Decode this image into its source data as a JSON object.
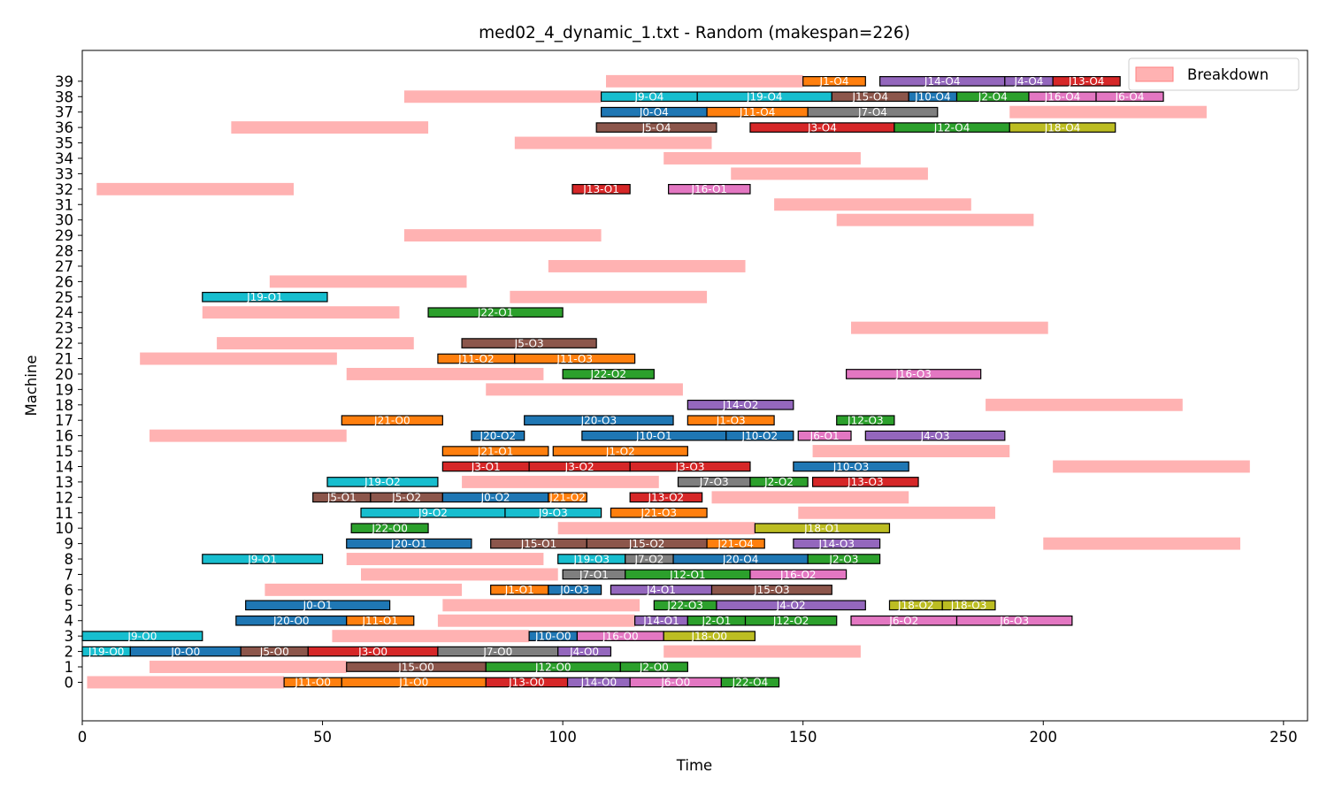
{
  "chart_data": {
    "type": "gantt",
    "title": "med02_4_dynamic_1.txt - Random (makespan=226)",
    "xlabel": "Time",
    "ylabel": "Machine",
    "xlim": [
      0,
      255
    ],
    "ylim": [
      -2.5,
      41
    ],
    "x_ticks": [
      0,
      50,
      100,
      150,
      200,
      250
    ],
    "y_ticks": [
      0,
      1,
      2,
      3,
      4,
      5,
      6,
      7,
      8,
      9,
      10,
      11,
      12,
      13,
      14,
      15,
      16,
      17,
      18,
      19,
      20,
      21,
      22,
      23,
      24,
      25,
      26,
      27,
      28,
      29,
      30,
      31,
      32,
      33,
      34,
      35,
      36,
      37,
      38,
      39
    ],
    "grid": false,
    "legend": {
      "position": "top-right",
      "entries": [
        {
          "label": "Breakdown",
          "color": "#ffb2b2"
        }
      ]
    },
    "job_colors": {
      "J0": "#1f77b4",
      "J1": "#ff7f0e",
      "J2": "#2ca02c",
      "J3": "#d62728",
      "J4": "#9467bd",
      "J5": "#8c564b",
      "J6": "#e377c2",
      "J7": "#7f7f7f",
      "J9": "#17becf",
      "J10": "#1f77b4",
      "J11": "#ff7f0e",
      "J12": "#2ca02c",
      "J13": "#d62728",
      "J14": "#9467bd",
      "J15": "#8c564b",
      "J16": "#e377c2",
      "J18": "#bcbd22",
      "J19": "#17becf",
      "J20": "#1f77b4",
      "J21": "#ff7f0e",
      "J22": "#2ca02c"
    },
    "breakdowns": [
      {
        "machine": 0,
        "start": 1,
        "end": 42
      },
      {
        "machine": 1,
        "start": 14,
        "end": 55
      },
      {
        "machine": 2,
        "start": 121,
        "end": 162
      },
      {
        "machine": 3,
        "start": 52,
        "end": 93
      },
      {
        "machine": 4,
        "start": 74,
        "end": 115
      },
      {
        "machine": 5,
        "start": 75,
        "end": 116
      },
      {
        "machine": 6,
        "start": 38,
        "end": 79
      },
      {
        "machine": 7,
        "start": 58,
        "end": 99
      },
      {
        "machine": 8,
        "start": 55,
        "end": 96
      },
      {
        "machine": 9,
        "start": 200,
        "end": 241
      },
      {
        "machine": 10,
        "start": 99,
        "end": 140
      },
      {
        "machine": 11,
        "start": 149,
        "end": 190
      },
      {
        "machine": 12,
        "start": 131,
        "end": 172
      },
      {
        "machine": 13,
        "start": 79,
        "end": 120
      },
      {
        "machine": 14,
        "start": 202,
        "end": 243
      },
      {
        "machine": 15,
        "start": 152,
        "end": 193
      },
      {
        "machine": 16,
        "start": 14,
        "end": 55
      },
      {
        "machine": 18,
        "start": 188,
        "end": 229
      },
      {
        "machine": 19,
        "start": 84,
        "end": 125
      },
      {
        "machine": 20,
        "start": 55,
        "end": 96
      },
      {
        "machine": 21,
        "start": 12,
        "end": 53
      },
      {
        "machine": 22,
        "start": 28,
        "end": 69
      },
      {
        "machine": 23,
        "start": 160,
        "end": 201
      },
      {
        "machine": 24,
        "start": 25,
        "end": 66
      },
      {
        "machine": 25,
        "start": 89,
        "end": 130
      },
      {
        "machine": 26,
        "start": 39,
        "end": 80
      },
      {
        "machine": 27,
        "start": 97,
        "end": 138
      },
      {
        "machine": 29,
        "start": 67,
        "end": 108
      },
      {
        "machine": 30,
        "start": 157,
        "end": 198
      },
      {
        "machine": 31,
        "start": 144,
        "end": 185
      },
      {
        "machine": 32,
        "start": 3,
        "end": 44
      },
      {
        "machine": 33,
        "start": 135,
        "end": 176
      },
      {
        "machine": 34,
        "start": 121,
        "end": 162
      },
      {
        "machine": 35,
        "start": 90,
        "end": 131
      },
      {
        "machine": 36,
        "start": 31,
        "end": 72
      },
      {
        "machine": 37,
        "start": 193,
        "end": 234
      },
      {
        "machine": 38,
        "start": 67,
        "end": 108
      },
      {
        "machine": 39,
        "start": 109,
        "end": 150
      }
    ],
    "operations": [
      {
        "machine": 0,
        "job": "J11",
        "label": "J11-O0",
        "start": 42,
        "end": 54
      },
      {
        "machine": 0,
        "job": "J1",
        "label": "J1-O0",
        "start": 54,
        "end": 84
      },
      {
        "machine": 0,
        "job": "J13",
        "label": "J13-O0",
        "start": 84,
        "end": 101
      },
      {
        "machine": 0,
        "job": "J14",
        "label": "J14-O0",
        "start": 101,
        "end": 114
      },
      {
        "machine": 0,
        "job": "J6",
        "label": "J6-O0",
        "start": 114,
        "end": 133
      },
      {
        "machine": 0,
        "job": "J22",
        "label": "J22-O4",
        "start": 133,
        "end": 145
      },
      {
        "machine": 1,
        "job": "J15",
        "label": "J15-O0",
        "start": 55,
        "end": 84
      },
      {
        "machine": 1,
        "job": "J12",
        "label": "J12-O0",
        "start": 84,
        "end": 112
      },
      {
        "machine": 1,
        "job": "J2",
        "label": "J2-O0",
        "start": 112,
        "end": 126
      },
      {
        "machine": 2,
        "job": "J19",
        "label": "J19-O0",
        "start": 0,
        "end": 10
      },
      {
        "machine": 2,
        "job": "J0",
        "label": "J0-O0",
        "start": 10,
        "end": 33
      },
      {
        "machine": 2,
        "job": "J5",
        "label": "J5-O0",
        "start": 33,
        "end": 47
      },
      {
        "machine": 2,
        "job": "J3",
        "label": "J3-O0",
        "start": 47,
        "end": 74
      },
      {
        "machine": 2,
        "job": "J7",
        "label": "J7-O0",
        "start": 74,
        "end": 99
      },
      {
        "machine": 2,
        "job": "J4",
        "label": "J4-O0",
        "start": 99,
        "end": 110
      },
      {
        "machine": 3,
        "job": "J9",
        "label": "J9-O0",
        "start": 0,
        "end": 25
      },
      {
        "machine": 3,
        "job": "J10",
        "label": "J10-O0",
        "start": 93,
        "end": 103
      },
      {
        "machine": 3,
        "job": "J16",
        "label": "J16-O0",
        "start": 103,
        "end": 121
      },
      {
        "machine": 3,
        "job": "J18",
        "label": "J18-O0",
        "start": 121,
        "end": 140
      },
      {
        "machine": 4,
        "job": "J20",
        "label": "J20-O0",
        "start": 32,
        "end": 55
      },
      {
        "machine": 4,
        "job": "J11",
        "label": "J11-O1",
        "start": 55,
        "end": 69
      },
      {
        "machine": 4,
        "job": "J14",
        "label": "J14-O1",
        "start": 115,
        "end": 126
      },
      {
        "machine": 4,
        "job": "J2",
        "label": "J2-O1",
        "start": 126,
        "end": 138
      },
      {
        "machine": 4,
        "job": "J12",
        "label": "J12-O2",
        "start": 138,
        "end": 157
      },
      {
        "machine": 4,
        "job": "J6",
        "label": "J6-O2",
        "start": 160,
        "end": 182
      },
      {
        "machine": 4,
        "job": "J6",
        "label": "J6-O3",
        "start": 182,
        "end": 206
      },
      {
        "machine": 5,
        "job": "J0",
        "label": "J0-O1",
        "start": 34,
        "end": 64
      },
      {
        "machine": 5,
        "job": "J22",
        "label": "J22-O3",
        "start": 119,
        "end": 132
      },
      {
        "machine": 5,
        "job": "J4",
        "label": "J4-O2",
        "start": 132,
        "end": 163
      },
      {
        "machine": 5,
        "job": "J18",
        "label": "J18-O2",
        "start": 168,
        "end": 179
      },
      {
        "machine": 5,
        "job": "J18",
        "label": "J18-O3",
        "start": 179,
        "end": 190
      },
      {
        "machine": 6,
        "job": "J1",
        "label": "J1-O1",
        "start": 85,
        "end": 97
      },
      {
        "machine": 6,
        "job": "J0",
        "label": "J0-O3",
        "start": 97,
        "end": 108
      },
      {
        "machine": 6,
        "job": "J4",
        "label": "J4-O1",
        "start": 110,
        "end": 131
      },
      {
        "machine": 6,
        "job": "J15",
        "label": "J15-O3",
        "start": 131,
        "end": 156
      },
      {
        "machine": 7,
        "job": "J7",
        "label": "J7-O1",
        "start": 100,
        "end": 113
      },
      {
        "machine": 7,
        "job": "J12",
        "label": "J12-O1",
        "start": 113,
        "end": 139
      },
      {
        "machine": 7,
        "job": "J16",
        "label": "J16-O2",
        "start": 139,
        "end": 159
      },
      {
        "machine": 8,
        "job": "J9",
        "label": "J9-O1",
        "start": 25,
        "end": 50
      },
      {
        "machine": 8,
        "job": "J19",
        "label": "J19-O3",
        "start": 99,
        "end": 113
      },
      {
        "machine": 8,
        "job": "J7",
        "label": "J7-O2",
        "start": 113,
        "end": 123
      },
      {
        "machine": 8,
        "job": "J20",
        "label": "J20-O4",
        "start": 123,
        "end": 151
      },
      {
        "machine": 8,
        "job": "J2",
        "label": "J2-O3",
        "start": 151,
        "end": 166
      },
      {
        "machine": 9,
        "job": "J20",
        "label": "J20-O1",
        "start": 55,
        "end": 81
      },
      {
        "machine": 9,
        "job": "J15",
        "label": "J15-O1",
        "start": 85,
        "end": 105
      },
      {
        "machine": 9,
        "job": "J15",
        "label": "J15-O2",
        "start": 105,
        "end": 130
      },
      {
        "machine": 9,
        "job": "J21",
        "label": "J21-O4",
        "start": 130,
        "end": 142
      },
      {
        "machine": 9,
        "job": "J14",
        "label": "J14-O3",
        "start": 148,
        "end": 166
      },
      {
        "machine": 10,
        "job": "J22",
        "label": "J22-O0",
        "start": 56,
        "end": 72
      },
      {
        "machine": 10,
        "job": "J18",
        "label": "J18-O1",
        "start": 140,
        "end": 168
      },
      {
        "machine": 11,
        "job": "J9",
        "label": "J9-O2",
        "start": 58,
        "end": 88
      },
      {
        "machine": 11,
        "job": "J9",
        "label": "J9-O3",
        "start": 88,
        "end": 108
      },
      {
        "machine": 11,
        "job": "J21",
        "label": "J21-O3",
        "start": 110,
        "end": 130
      },
      {
        "machine": 12,
        "job": "J5",
        "label": "J5-O1",
        "start": 48,
        "end": 60
      },
      {
        "machine": 12,
        "job": "J5",
        "label": "J5-O2",
        "start": 60,
        "end": 75
      },
      {
        "machine": 12,
        "job": "J0",
        "label": "J0-O2",
        "start": 75,
        "end": 97
      },
      {
        "machine": 12,
        "job": "J21",
        "label": "J21-O2",
        "start": 97,
        "end": 105
      },
      {
        "machine": 12,
        "job": "J13",
        "label": "J13-O2",
        "start": 114,
        "end": 129
      },
      {
        "machine": 13,
        "job": "J19",
        "label": "J19-O2",
        "start": 51,
        "end": 74
      },
      {
        "machine": 13,
        "job": "J7",
        "label": "J7-O3",
        "start": 124,
        "end": 139
      },
      {
        "machine": 13,
        "job": "J2",
        "label": "J2-O2",
        "start": 139,
        "end": 151
      },
      {
        "machine": 13,
        "job": "J13",
        "label": "J13-O3",
        "start": 152,
        "end": 174
      },
      {
        "machine": 14,
        "job": "J3",
        "label": "J3-O1",
        "start": 75,
        "end": 93
      },
      {
        "machine": 14,
        "job": "J3",
        "label": "J3-O2",
        "start": 93,
        "end": 114
      },
      {
        "machine": 14,
        "job": "J3",
        "label": "J3-O3",
        "start": 114,
        "end": 139
      },
      {
        "machine": 14,
        "job": "J10",
        "label": "J10-O3",
        "start": 148,
        "end": 172
      },
      {
        "machine": 15,
        "job": "J21",
        "label": "J21-O1",
        "start": 75,
        "end": 97
      },
      {
        "machine": 15,
        "job": "J1",
        "label": "J1-O2",
        "start": 98,
        "end": 126
      },
      {
        "machine": 16,
        "job": "J20",
        "label": "J20-O2",
        "start": 81,
        "end": 92
      },
      {
        "machine": 16,
        "job": "J10",
        "label": "J10-O1",
        "start": 104,
        "end": 134
      },
      {
        "machine": 16,
        "job": "J10",
        "label": "J10-O2",
        "start": 134,
        "end": 148
      },
      {
        "machine": 16,
        "job": "J6",
        "label": "J6-O1",
        "start": 149,
        "end": 160
      },
      {
        "machine": 16,
        "job": "J4",
        "label": "J4-O3",
        "start": 163,
        "end": 192
      },
      {
        "machine": 17,
        "job": "J21",
        "label": "J21-O0",
        "start": 54,
        "end": 75
      },
      {
        "machine": 17,
        "job": "J20",
        "label": "J20-O3",
        "start": 92,
        "end": 123
      },
      {
        "machine": 17,
        "job": "J1",
        "label": "J1-O3",
        "start": 126,
        "end": 144
      },
      {
        "machine": 17,
        "job": "J12",
        "label": "J12-O3",
        "start": 157,
        "end": 169
      },
      {
        "machine": 18,
        "job": "J14",
        "label": "J14-O2",
        "start": 126,
        "end": 148
      },
      {
        "machine": 20,
        "job": "J22",
        "label": "J22-O2",
        "start": 100,
        "end": 119
      },
      {
        "machine": 20,
        "job": "J16",
        "label": "J16-O3",
        "start": 159,
        "end": 187
      },
      {
        "machine": 21,
        "job": "J11",
        "label": "J11-O2",
        "start": 74,
        "end": 90
      },
      {
        "machine": 21,
        "job": "J11",
        "label": "J11-O3",
        "start": 90,
        "end": 115
      },
      {
        "machine": 22,
        "job": "J5",
        "label": "J5-O3",
        "start": 79,
        "end": 107
      },
      {
        "machine": 24,
        "job": "J22",
        "label": "J22-O1",
        "start": 72,
        "end": 100
      },
      {
        "machine": 25,
        "job": "J19",
        "label": "J19-O1",
        "start": 25,
        "end": 51
      },
      {
        "machine": 32,
        "job": "J13",
        "label": "J13-O1",
        "start": 102,
        "end": 114
      },
      {
        "machine": 32,
        "job": "J16",
        "label": "J16-O1",
        "start": 122,
        "end": 139
      },
      {
        "machine": 36,
        "job": "J5",
        "label": "J5-O4",
        "start": 107,
        "end": 132
      },
      {
        "machine": 36,
        "job": "J3",
        "label": "J3-O4",
        "start": 139,
        "end": 169
      },
      {
        "machine": 36,
        "job": "J12",
        "label": "J12-O4",
        "start": 169,
        "end": 193
      },
      {
        "machine": 36,
        "job": "J18",
        "label": "J18-O4",
        "start": 193,
        "end": 215
      },
      {
        "machine": 37,
        "job": "J0",
        "label": "J0-O4",
        "start": 108,
        "end": 130
      },
      {
        "machine": 37,
        "job": "J11",
        "label": "J11-O4",
        "start": 130,
        "end": 151
      },
      {
        "machine": 37,
        "job": "J7",
        "label": "J7-O4",
        "start": 151,
        "end": 178
      },
      {
        "machine": 38,
        "job": "J9",
        "label": "J9-O4",
        "start": 108,
        "end": 128
      },
      {
        "machine": 38,
        "job": "J19",
        "label": "J19-O4",
        "start": 128,
        "end": 156
      },
      {
        "machine": 38,
        "job": "J15",
        "label": "J15-O4",
        "start": 156,
        "end": 172
      },
      {
        "machine": 38,
        "job": "J10",
        "label": "J10-O4",
        "start": 172,
        "end": 182
      },
      {
        "machine": 38,
        "job": "J2",
        "label": "J2-O4",
        "start": 182,
        "end": 197
      },
      {
        "machine": 38,
        "job": "J16",
        "label": "J16-O4",
        "start": 197,
        "end": 211
      },
      {
        "machine": 38,
        "job": "J6",
        "label": "J6-O4",
        "start": 211,
        "end": 225
      },
      {
        "machine": 39,
        "job": "J1",
        "label": "J1-O4",
        "start": 150,
        "end": 163
      },
      {
        "machine": 39,
        "job": "J14",
        "label": "J14-O4",
        "start": 166,
        "end": 192
      },
      {
        "machine": 39,
        "job": "J4",
        "label": "J4-O4",
        "start": 192,
        "end": 202
      },
      {
        "machine": 39,
        "job": "J13",
        "label": "J13-O4",
        "start": 202,
        "end": 216
      }
    ]
  }
}
